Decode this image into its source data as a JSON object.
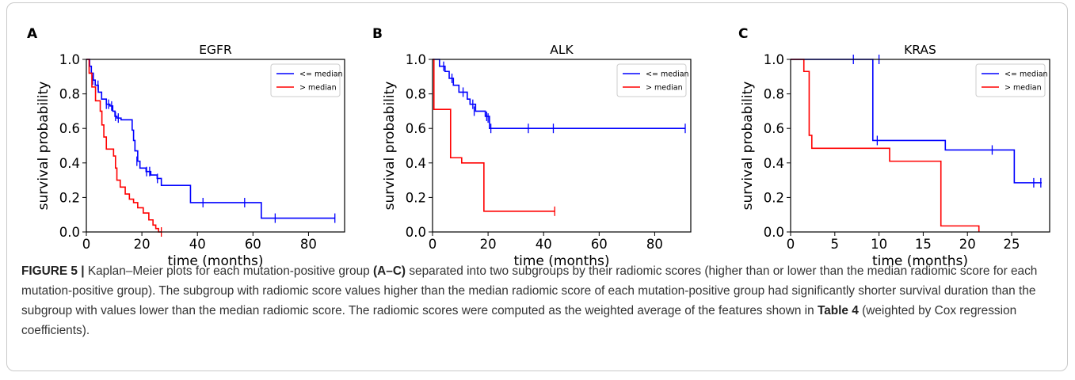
{
  "caption": {
    "label": "FIGURE 5 |",
    "text1": " Kaplan–Meier plots for each mutation-positive group ",
    "bold1": "(A–C)",
    "text2": " separated into two subgroups by their radiomic scores (higher than or lower than the median radiomic score for each mutation-positive group). The subgroup with radiomic score values higher than the median radiomic score of each mutation-positive group had significantly shorter survival duration than the subgroup with values lower than the median radiomic score. The radiomic scores were computed as the weighted average of the features shown in ",
    "bold2": "Table 4",
    "text3": " (weighted by Cox regression coefficients)."
  },
  "colors": {
    "low": "#0000ff",
    "high": "#ff0000"
  },
  "chart_data": [
    {
      "type": "line",
      "panel_label": "A",
      "title": "EGFR",
      "xlabel": "time (months)",
      "ylabel": "survival probability",
      "xlim": [
        0,
        93
      ],
      "ylim": [
        0,
        1.0
      ],
      "xticks": [
        0,
        20,
        40,
        60,
        80
      ],
      "yticks": [
        0.0,
        0.2,
        0.4,
        0.6,
        0.8,
        1.0
      ],
      "grid": false,
      "legend_position": "top-right",
      "series": [
        {
          "name": "<= median",
          "color": "#0000ff",
          "steps": [
            [
              0,
              1.0
            ],
            [
              1.2,
              0.96
            ],
            [
              1.8,
              0.92
            ],
            [
              2.5,
              0.88
            ],
            [
              3.2,
              0.85
            ],
            [
              4.3,
              0.81
            ],
            [
              5.5,
              0.77
            ],
            [
              7.2,
              0.74
            ],
            [
              8.5,
              0.73
            ],
            [
              9.5,
              0.7
            ],
            [
              10.3,
              0.67
            ],
            [
              11,
              0.66
            ],
            [
              12.5,
              0.65
            ],
            [
              16.5,
              0.59
            ],
            [
              17,
              0.53
            ],
            [
              17.5,
              0.47
            ],
            [
              18.5,
              0.41
            ],
            [
              19.3,
              0.37
            ],
            [
              21.5,
              0.35
            ],
            [
              23.2,
              0.33
            ],
            [
              25.5,
              0.31
            ],
            [
              27,
              0.27
            ],
            [
              37.5,
              0.17
            ],
            [
              63,
              0.08
            ]
          ],
          "end": 89.5,
          "censored": [
            [
              2.3,
              0.88
            ],
            [
              4.2,
              0.85
            ],
            [
              7.2,
              0.74
            ],
            [
              8,
              0.74
            ],
            [
              9.1,
              0.73
            ],
            [
              10.5,
              0.67
            ],
            [
              11.5,
              0.66
            ],
            [
              18.2,
              0.41
            ],
            [
              21.7,
              0.35
            ],
            [
              22.8,
              0.35
            ],
            [
              25.6,
              0.31
            ],
            [
              42,
              0.17
            ],
            [
              57,
              0.17
            ],
            [
              68,
              0.08
            ],
            [
              89.5,
              0.08
            ]
          ]
        },
        {
          "name": "> median",
          "color": "#ff0000",
          "steps": [
            [
              0,
              1.0
            ],
            [
              1,
              0.92
            ],
            [
              2,
              0.84
            ],
            [
              3.3,
              0.76
            ],
            [
              5,
              0.7
            ],
            [
              5.6,
              0.62
            ],
            [
              6.3,
              0.55
            ],
            [
              7.2,
              0.48
            ],
            [
              9.8,
              0.44
            ],
            [
              10.5,
              0.37
            ],
            [
              11,
              0.3
            ],
            [
              12.2,
              0.26
            ],
            [
              14,
              0.22
            ],
            [
              15.5,
              0.19
            ],
            [
              17,
              0.17
            ],
            [
              18.5,
              0.14
            ],
            [
              20.5,
              0.11
            ],
            [
              22.5,
              0.07
            ],
            [
              24,
              0.04
            ],
            [
              25,
              0.02
            ],
            [
              26,
              0.0
            ]
          ],
          "end": 27,
          "censored": [
            [
              27,
              0.0
            ]
          ]
        }
      ]
    },
    {
      "type": "line",
      "panel_label": "B",
      "title": "ALK",
      "xlabel": "time (months)",
      "ylabel": "survival probability",
      "xlim": [
        0,
        93
      ],
      "ylim": [
        0,
        1.0
      ],
      "xticks": [
        0,
        20,
        40,
        60,
        80
      ],
      "yticks": [
        0.0,
        0.2,
        0.4,
        0.6,
        0.8,
        1.0
      ],
      "grid": false,
      "legend_position": "top-right",
      "series": [
        {
          "name": "<= median",
          "color": "#0000ff",
          "steps": [
            [
              0,
              1.0
            ],
            [
              2.5,
              0.96
            ],
            [
              4.5,
              0.93
            ],
            [
              6,
              0.89
            ],
            [
              7.5,
              0.85
            ],
            [
              9.5,
              0.81
            ],
            [
              12.5,
              0.77
            ],
            [
              13.5,
              0.74
            ],
            [
              15.5,
              0.7
            ],
            [
              19,
              0.67
            ],
            [
              20.5,
              0.6
            ]
          ],
          "end": 91,
          "censored": [
            [
              4,
              0.96
            ],
            [
              7,
              0.89
            ],
            [
              11,
              0.81
            ],
            [
              14.5,
              0.74
            ],
            [
              15,
              0.7
            ],
            [
              19.5,
              0.67
            ],
            [
              20,
              0.66
            ],
            [
              21,
              0.6
            ],
            [
              34.5,
              0.6
            ],
            [
              43.5,
              0.6
            ],
            [
              91,
              0.6
            ]
          ]
        },
        {
          "name": "> median",
          "color": "#ff0000",
          "steps": [
            [
              0,
              1.0
            ],
            [
              0.5,
              0.71
            ],
            [
              6.5,
              0.43
            ],
            [
              10.5,
              0.4
            ],
            [
              18.5,
              0.12
            ]
          ],
          "end": 44,
          "censored": [
            [
              44,
              0.12
            ]
          ]
        }
      ]
    },
    {
      "type": "line",
      "panel_label": "C",
      "title": "KRAS",
      "xlabel": "time (months)",
      "ylabel": "survival probability",
      "xlim": [
        0,
        29.3
      ],
      "ylim": [
        0,
        1.0
      ],
      "xticks": [
        0,
        5,
        10,
        15,
        20,
        25
      ],
      "yticks": [
        0.0,
        0.2,
        0.4,
        0.6,
        0.8,
        1.0
      ],
      "grid": false,
      "legend_position": "top-right",
      "series": [
        {
          "name": "<= median",
          "color": "#0000ff",
          "steps": [
            [
              0,
              1.0
            ],
            [
              9.3,
              0.53
            ],
            [
              17.5,
              0.475
            ],
            [
              25.3,
              0.285
            ]
          ],
          "end": 28.4,
          "censored": [
            [
              7.1,
              1.0
            ],
            [
              10,
              1.0
            ],
            [
              9.8,
              0.53
            ],
            [
              22.8,
              0.475
            ],
            [
              27.5,
              0.285
            ],
            [
              28.3,
              0.285
            ]
          ]
        },
        {
          "name": "> median",
          "color": "#ff0000",
          "steps": [
            [
              0,
              1.0
            ],
            [
              1.5,
              0.93
            ],
            [
              2.1,
              0.56
            ],
            [
              2.4,
              0.485
            ],
            [
              11.2,
              0.41
            ],
            [
              17,
              0.035
            ],
            [
              21.3,
              0.0
            ]
          ],
          "end": 21.3,
          "censored": []
        }
      ]
    }
  ]
}
